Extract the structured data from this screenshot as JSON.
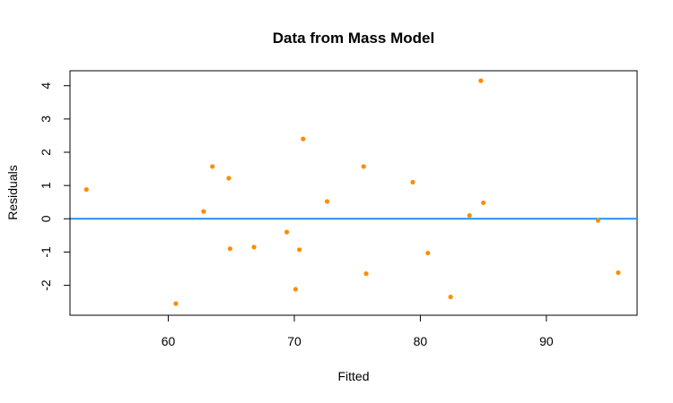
{
  "chart_data": {
    "type": "scatter",
    "title": "Data from Mass Model",
    "xlabel": "Fitted",
    "ylabel": "Residuals",
    "xlim": [
      52.2,
      97.2
    ],
    "ylim": [
      -2.9,
      4.45
    ],
    "xticks": [
      60,
      70,
      80,
      90
    ],
    "yticks": [
      -2,
      -1,
      0,
      1,
      2,
      3,
      4
    ],
    "xtick_labels": [
      "60",
      "70",
      "80",
      "90"
    ],
    "ytick_labels": [
      "-2",
      "-1",
      "0",
      "1",
      "2",
      "3",
      "4"
    ],
    "grid": false,
    "point_color": "#FF8C00",
    "reference_line": {
      "y": 0,
      "color": "#1E90FF"
    },
    "points": [
      {
        "x": 53.5,
        "y": 0.88
      },
      {
        "x": 60.6,
        "y": -2.55
      },
      {
        "x": 62.8,
        "y": 0.22
      },
      {
        "x": 63.5,
        "y": 1.57
      },
      {
        "x": 64.8,
        "y": 1.22
      },
      {
        "x": 64.9,
        "y": -0.9
      },
      {
        "x": 66.8,
        "y": -0.85
      },
      {
        "x": 69.4,
        "y": -0.4
      },
      {
        "x": 70.1,
        "y": -2.12
      },
      {
        "x": 70.4,
        "y": -0.93
      },
      {
        "x": 70.7,
        "y": 2.4
      },
      {
        "x": 72.6,
        "y": 0.52
      },
      {
        "x": 75.5,
        "y": 1.57
      },
      {
        "x": 75.7,
        "y": -1.65
      },
      {
        "x": 79.4,
        "y": 1.1
      },
      {
        "x": 80.6,
        "y": -1.03
      },
      {
        "x": 82.4,
        "y": -2.35
      },
      {
        "x": 83.9,
        "y": 0.1
      },
      {
        "x": 84.8,
        "y": 4.15
      },
      {
        "x": 85.0,
        "y": 0.48
      },
      {
        "x": 94.1,
        "y": -0.05
      },
      {
        "x": 95.7,
        "y": -1.62
      }
    ]
  }
}
